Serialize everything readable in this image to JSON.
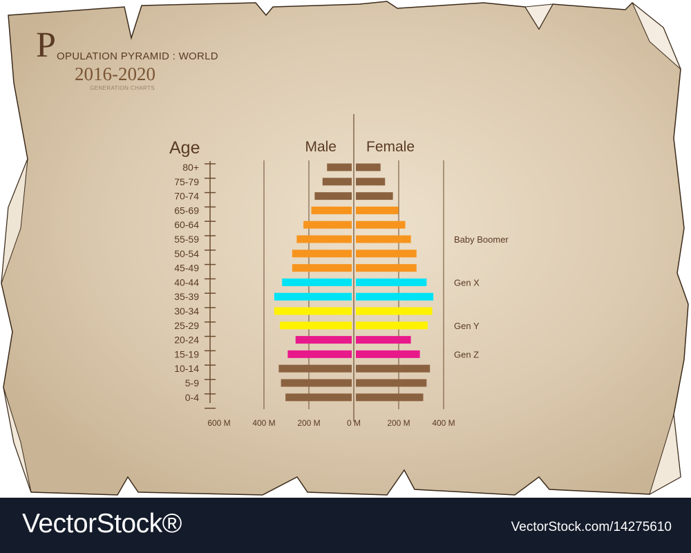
{
  "header": {
    "title_letter": "P",
    "title_rest": "OPULATION PYRAMID : WORLD",
    "years": "2016-2020",
    "subtitle": "GENERATION CHARTS"
  },
  "footer": {
    "brand": "VectorStock®",
    "image_id": "VectorStock.com/14275610"
  },
  "colors": {
    "paper": "#dccab0",
    "brown": "#8b6240",
    "orange": "#f7941d",
    "cyan": "#00e3f4",
    "yellow": "#fff200",
    "magenta": "#e8198b",
    "text": "#5a3a24"
  },
  "chart_data": {
    "type": "bar",
    "orientation": "horizontal-diverging",
    "age_axis_label": "Age",
    "left_label": "Male",
    "right_label": "Female",
    "categories": [
      "80+",
      "75-79",
      "70-74",
      "65-69",
      "60-64",
      "55-59",
      "50-54",
      "45-49",
      "40-44",
      "35-39",
      "30-34",
      "25-29",
      "20-24",
      "15-19",
      "10-14",
      "5-9",
      "0-4"
    ],
    "male": [
      110,
      130,
      165,
      180,
      215,
      245,
      265,
      265,
      310,
      345,
      345,
      320,
      250,
      285,
      325,
      315,
      295
    ],
    "female": [
      110,
      130,
      165,
      190,
      220,
      245,
      270,
      270,
      315,
      345,
      340,
      320,
      245,
      285,
      330,
      315,
      300
    ],
    "generations": [
      "brown",
      "brown",
      "brown",
      "orange",
      "orange",
      "orange",
      "orange",
      "orange",
      "cyan",
      "cyan",
      "yellow",
      "yellow",
      "magenta",
      "magenta",
      "brown",
      "brown",
      "brown"
    ],
    "generation_labels": [
      {
        "text": "Baby Boomer",
        "row": 5
      },
      {
        "text": "Gen X",
        "row": 8
      },
      {
        "text": "Gen Y",
        "row": 11
      },
      {
        "text": "Gen Z",
        "row": 13
      }
    ],
    "x_ticks": [
      {
        "label": "600 M",
        "value": -600
      },
      {
        "label": "400 M",
        "value": -400
      },
      {
        "label": "200 M",
        "value": -200
      },
      {
        "label": "0 M",
        "value": 0
      },
      {
        "label": "200 M",
        "value": 200
      },
      {
        "label": "400 M",
        "value": 400
      }
    ],
    "xlim": [
      -600,
      400
    ],
    "unit": "M"
  }
}
